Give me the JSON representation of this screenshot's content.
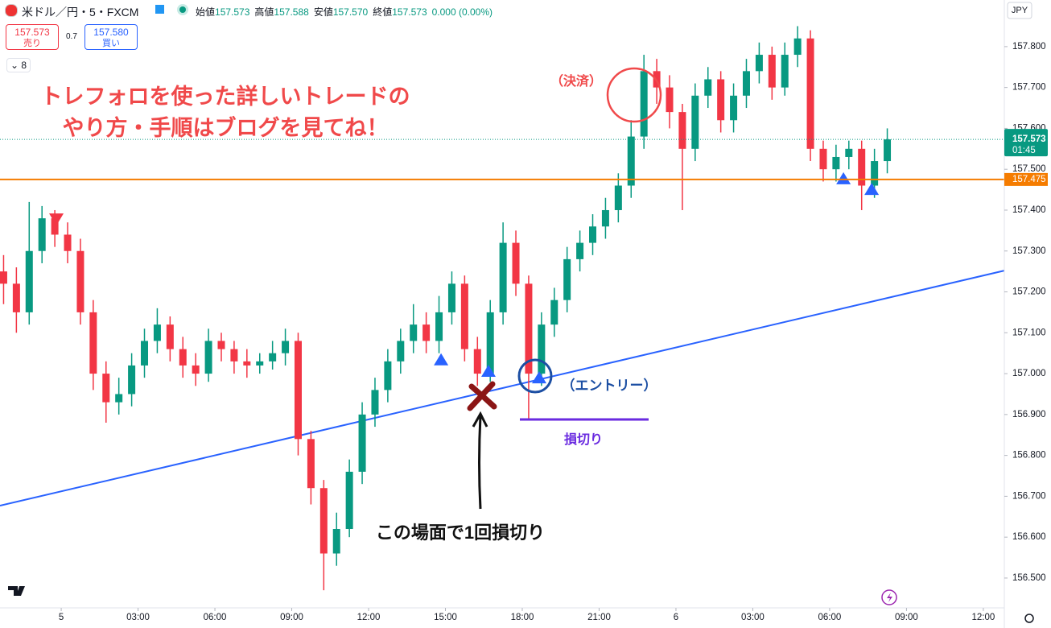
{
  "symbol": "米ドル／円・5・FXCM",
  "quote": [
    {
      "label": "始値",
      "value": "157.573"
    },
    {
      "label": "高値",
      "value": "157.588"
    },
    {
      "label": "安値",
      "value": "157.570"
    },
    {
      "label": "終値",
      "value": "157.573"
    }
  ],
  "change": "0.000 (0.00%)",
  "trade": {
    "sell_price": "157.573",
    "sell_label": "売り",
    "spread": "0.7",
    "buy_price": "157.580",
    "buy_label": "買い"
  },
  "indicator_count": "8",
  "annotations": {
    "headline": [
      "トレフォロを使った詳しいトレードの",
      "やり方・手順はブログを見てね！"
    ],
    "exit": "（決済）",
    "entry": "（エントリー）",
    "stop": "損切り",
    "note": "この場面で1回損切り"
  },
  "chart_data": {
    "type": "candlestick",
    "currency": "JPY",
    "up_color": "#089981",
    "down_color": "#f23645",
    "grid": false,
    "x": [
      -2.25,
      -1.75,
      -1.25,
      -0.75,
      -0.25,
      0.25,
      0.75,
      1.25,
      1.75,
      2.25,
      2.75,
      3.25,
      3.75,
      4.25,
      4.75,
      5.25,
      5.75,
      6.25,
      6.75,
      7.25,
      7.75,
      8.25,
      8.75,
      9.25,
      9.75,
      10.25,
      10.75,
      11.25,
      11.75,
      12.25,
      12.75,
      13.25,
      13.75,
      14.25,
      14.75,
      15.25,
      15.75,
      16.25,
      16.75,
      17.25,
      17.75,
      18.25,
      18.75,
      19.25,
      19.75,
      20.25,
      20.75,
      21.25,
      21.75,
      22.25,
      22.75,
      23.25,
      23.75,
      24.25,
      24.75,
      25.25,
      25.75,
      26.25,
      26.75,
      27.25,
      27.75,
      28.25,
      28.75,
      29.25,
      29.75,
      30.25,
      30.75,
      31.25,
      31.75,
      32.25
    ],
    "open": [
      157.25,
      157.22,
      157.15,
      157.3,
      157.38,
      157.34,
      157.3,
      157.15,
      157.0,
      156.93,
      156.95,
      157.02,
      157.08,
      157.12,
      157.06,
      157.02,
      157.0,
      157.08,
      157.06,
      157.03,
      157.02,
      157.03,
      157.05,
      157.08,
      156.84,
      156.72,
      156.56,
      156.62,
      156.76,
      156.9,
      156.96,
      157.03,
      157.08,
      157.12,
      157.08,
      157.15,
      157.22,
      157.06,
      157.0,
      157.15,
      157.32,
      157.22,
      157.0,
      157.12,
      157.18,
      157.28,
      157.32,
      157.36,
      157.4,
      157.46,
      157.58,
      157.74,
      157.7,
      157.64,
      157.55,
      157.68,
      157.72,
      157.62,
      157.68,
      157.74,
      157.78,
      157.7,
      157.78,
      157.82,
      157.55,
      157.5,
      157.53,
      157.55,
      157.46,
      157.52
    ],
    "high": [
      157.29,
      157.26,
      157.42,
      157.41,
      157.4,
      157.37,
      157.33,
      157.18,
      157.03,
      156.99,
      157.05,
      157.11,
      157.16,
      157.14,
      157.09,
      157.05,
      157.11,
      157.1,
      157.08,
      157.06,
      157.05,
      157.08,
      157.11,
      157.1,
      156.86,
      156.74,
      156.66,
      156.79,
      156.93,
      156.99,
      157.06,
      157.11,
      157.17,
      157.15,
      157.19,
      157.25,
      157.24,
      157.09,
      157.18,
      157.37,
      157.35,
      157.24,
      157.15,
      157.21,
      157.31,
      157.35,
      157.39,
      157.43,
      157.49,
      157.62,
      157.78,
      157.77,
      157.73,
      157.66,
      157.71,
      157.75,
      157.74,
      157.71,
      157.77,
      157.81,
      157.8,
      157.81,
      157.85,
      157.84,
      157.57,
      157.56,
      157.57,
      157.57,
      157.55,
      157.6
    ],
    "low": [
      157.17,
      157.1,
      157.12,
      157.27,
      157.31,
      157.27,
      157.12,
      156.96,
      156.88,
      156.9,
      156.92,
      156.99,
      157.05,
      157.03,
      156.99,
      156.97,
      156.98,
      157.03,
      157.0,
      156.99,
      157.0,
      157.01,
      157.02,
      156.8,
      156.68,
      156.47,
      156.53,
      156.6,
      156.73,
      156.87,
      156.93,
      157.0,
      157.05,
      157.05,
      157.05,
      157.12,
      157.03,
      156.97,
      156.98,
      157.12,
      157.19,
      156.89,
      156.97,
      157.09,
      157.15,
      157.25,
      157.29,
      157.33,
      157.37,
      157.43,
      157.55,
      157.66,
      157.6,
      157.4,
      157.52,
      157.65,
      157.59,
      157.59,
      157.65,
      157.71,
      157.67,
      157.68,
      157.75,
      157.52,
      157.47,
      157.47,
      157.5,
      157.4,
      157.43,
      157.49
    ],
    "close": [
      157.22,
      157.15,
      157.3,
      157.38,
      157.34,
      157.3,
      157.15,
      157.0,
      156.93,
      156.95,
      157.02,
      157.08,
      157.12,
      157.06,
      157.02,
      157.0,
      157.08,
      157.06,
      157.03,
      157.02,
      157.03,
      157.05,
      157.08,
      156.84,
      156.72,
      156.56,
      156.62,
      156.76,
      156.9,
      156.96,
      157.03,
      157.08,
      157.12,
      157.08,
      157.15,
      157.22,
      157.06,
      157.0,
      157.15,
      157.32,
      157.22,
      157.0,
      157.12,
      157.18,
      157.28,
      157.32,
      157.36,
      157.4,
      157.46,
      157.58,
      157.74,
      157.7,
      157.64,
      157.55,
      157.68,
      157.72,
      157.62,
      157.68,
      157.74,
      157.78,
      157.7,
      157.78,
      157.82,
      157.55,
      157.5,
      157.53,
      157.55,
      157.46,
      157.52,
      157.573
    ],
    "xlim": [
      -2.39,
      36.82
    ],
    "ylim": [
      156.427,
      157.914
    ],
    "xticks": [
      {
        "value": 0,
        "label": "5"
      },
      {
        "value": 3,
        "label": "03:00"
      },
      {
        "value": 6,
        "label": "06:00"
      },
      {
        "value": 9,
        "label": "09:00"
      },
      {
        "value": 12,
        "label": "12:00"
      },
      {
        "value": 15,
        "label": "15:00"
      },
      {
        "value": 18,
        "label": "18:00"
      },
      {
        "value": 21,
        "label": "21:00"
      },
      {
        "value": 24,
        "label": "6"
      },
      {
        "value": 27,
        "label": "03:00"
      },
      {
        "value": 30,
        "label": "06:00"
      },
      {
        "value": 33,
        "label": "09:00"
      },
      {
        "value": 36,
        "label": "12:00"
      }
    ],
    "yticks": [
      {
        "value": 157.8,
        "label": "157.800"
      },
      {
        "value": 157.7,
        "label": "157.700"
      },
      {
        "value": 157.6,
        "label": "157.600"
      },
      {
        "value": 157.5,
        "label": "157.500"
      },
      {
        "value": 157.4,
        "label": "157.400"
      },
      {
        "value": 157.3,
        "label": "157.300"
      },
      {
        "value": 157.2,
        "label": "157.200"
      },
      {
        "value": 157.1,
        "label": "157.100"
      },
      {
        "value": 157.0,
        "label": "157.000"
      },
      {
        "value": 156.9,
        "label": "156.900"
      },
      {
        "value": 156.8,
        "label": "156.800"
      },
      {
        "value": 156.7,
        "label": "156.700"
      },
      {
        "value": 156.6,
        "label": "156.600"
      },
      {
        "value": 156.5,
        "label": "156.500"
      }
    ],
    "last_price": {
      "value": 157.573,
      "countdown": "01:45",
      "color": "#089981"
    },
    "level": {
      "value": 157.475,
      "color": "#f57c00"
    },
    "trendline": {
      "x": [
        -2.39,
        36.82
      ],
      "y": [
        156.677,
        157.252
      ],
      "color": "#2962ff"
    },
    "signals": {
      "x": [
        -0.19,
        14.83,
        16.68,
        18.66,
        30.54,
        31.64
      ],
      "y": [
        157.378,
        157.034,
        157.006,
        156.99,
        157.477,
        157.451
      ],
      "direction": [
        "down",
        "up",
        "up",
        "up",
        "up",
        "up"
      ]
    }
  }
}
